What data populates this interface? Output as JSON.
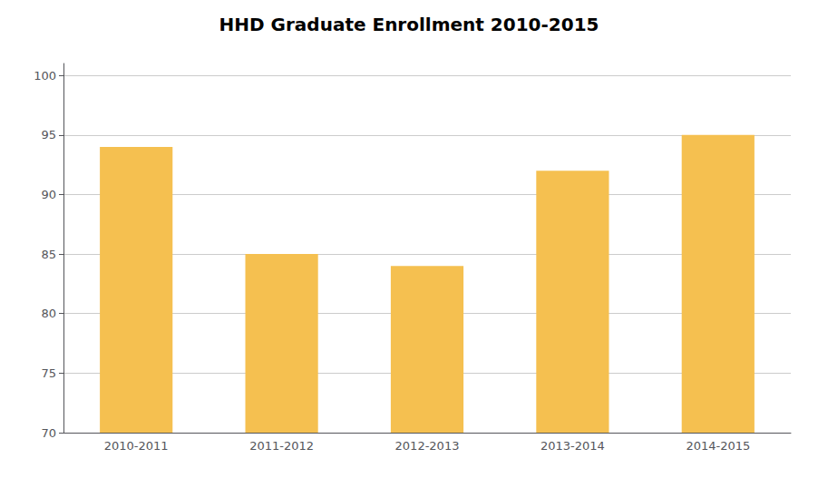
{
  "chart_data": {
    "type": "bar",
    "title": "HHD Graduate Enrollment 2010-2015",
    "categories": [
      "2010-2011",
      "2011-2012",
      "2012-2013",
      "2013-2014",
      "2014-2015"
    ],
    "values": [
      94,
      85,
      84,
      92,
      95
    ],
    "color": "#F5C050",
    "ylim": [
      70,
      101
    ],
    "yticks": [
      70,
      75,
      80,
      85,
      90,
      95,
      100
    ],
    "grid": true
  }
}
